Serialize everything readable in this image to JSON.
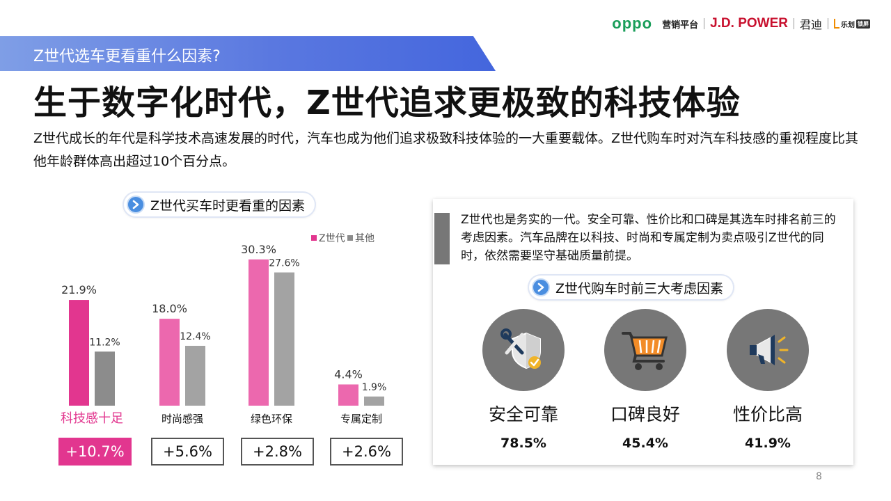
{
  "logos": {
    "oppo": "oppo",
    "marketing": "营销平台",
    "jdpower": "J.D. POWER",
    "junde": "君迪",
    "lehua": "乐划",
    "lehua_badge": "锁屏"
  },
  "section_tag": "Z世代选车更看重什么因素?",
  "title": "生于数字化时代，Z世代追求更极致的科技体验",
  "intro": "Z世代成长的年代是科学技术高速发展的时代，汽车也成为他们追求极致科技体验的一大重要载体。Z世代购车时对汽车科技感的重视程度比其他年龄群体高出超过10个百分点。",
  "chart_heading": "Z世代买车时更看重的因素",
  "chart_data": {
    "type": "bar",
    "categories": [
      "科技感十足",
      "时尚感强",
      "绿色环保",
      "专属定制"
    ],
    "series": [
      {
        "name": "Z世代",
        "values": [
          21.9,
          18.0,
          30.3,
          4.4
        ],
        "labels": [
          "21.9%",
          "18.0%",
          "30.3%",
          "4.4%"
        ]
      },
      {
        "name": "其他",
        "values": [
          11.2,
          12.4,
          27.6,
          1.9
        ],
        "labels": [
          "11.2%",
          "12.4%",
          "27.6%",
          "1.9%"
        ]
      }
    ],
    "differences": [
      "+10.7%",
      "+5.6%",
      "+2.8%",
      "+2.6%"
    ],
    "ylim": [
      0,
      32
    ],
    "legend_position": "top-right",
    "colors": {
      "z_gen": "#e2368f",
      "z_gen_light": "#ec68ae",
      "others": "#8c8c8c",
      "others_light": "#a3a3a3",
      "highlight_label": "#e2368f"
    }
  },
  "panel": {
    "text": "Z世代也是务实的一代。安全可靠、性价比和口碑是其选车时排名前三的考虑因素。汽车品牌在以科技、时尚和专属定制为卖点吸引Z世代的同时，依然需要坚守基础质量前提。",
    "heading": "Z世代购车时前三大考虑因素",
    "factors": [
      {
        "label": "安全可靠",
        "value": "78.5%",
        "icon": "shield-tools-icon"
      },
      {
        "label": "口碑良好",
        "value": "45.4%",
        "icon": "shopping-cart-icon"
      },
      {
        "label": "性价比高",
        "value": "41.9%",
        "icon": "megaphone-icon"
      }
    ]
  },
  "page_number": "8"
}
